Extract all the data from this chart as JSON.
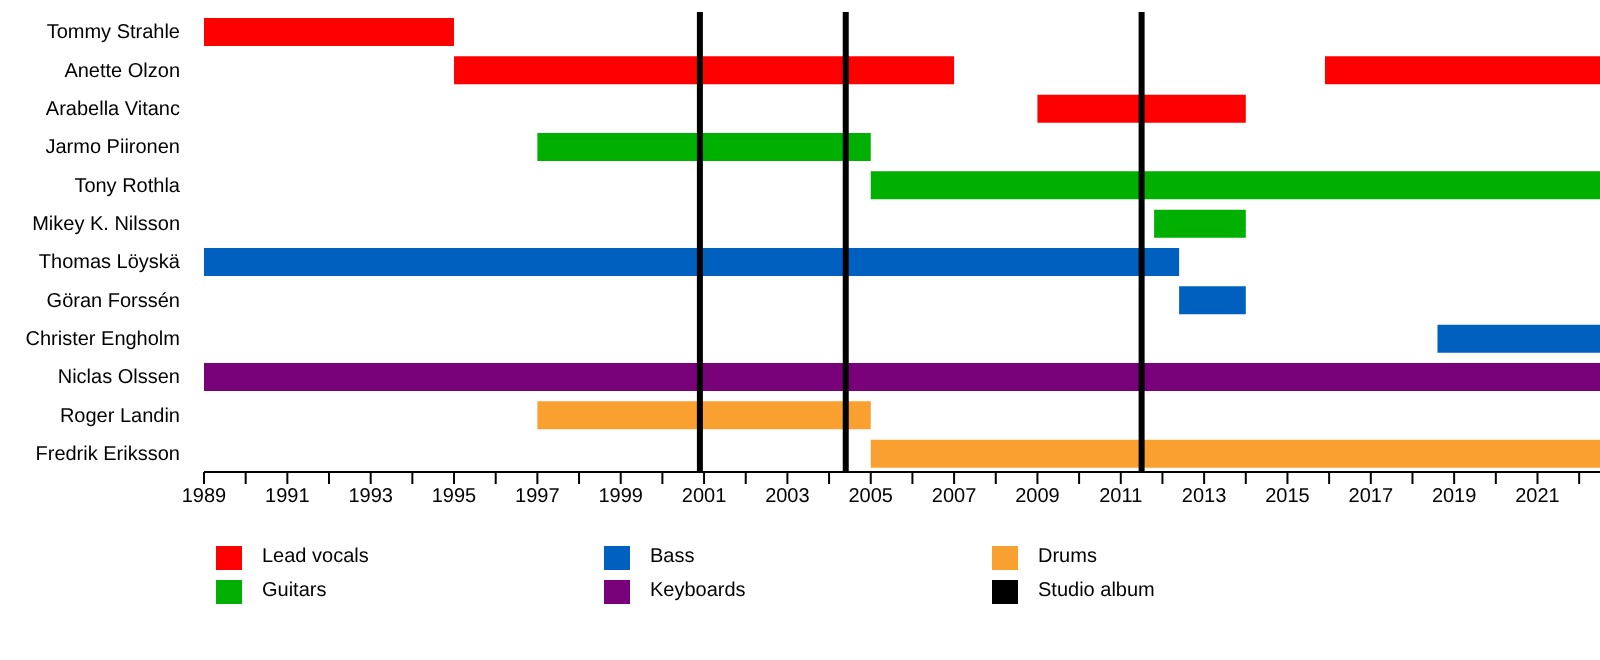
{
  "chart_data": {
    "type": "bar",
    "orientation": "horizontal",
    "categories": [
      "Tommy Strahle",
      "Anette Olzon",
      "Arabella Vitanc",
      "Jarmo Piironen",
      "Tony Rothla",
      "Mikey K. Nilsson",
      "Thomas Löyskä",
      "Göran Forssén",
      "Christer Engholm",
      "Niclas Olssen",
      "Roger Landin",
      "Fredrik Eriksson"
    ],
    "series": [
      {
        "name": "Lead vocals",
        "color": "#ff0000",
        "values": [
          6,
          12,
          5,
          null,
          null,
          null,
          null,
          null,
          null,
          null,
          null,
          null
        ],
        "base": [
          1989,
          1995,
          2009,
          null,
          null,
          null,
          null,
          null,
          null,
          null,
          null,
          null
        ]
      },
      {
        "color": "#ff0000",
        "values": [
          null,
          6.6,
          null,
          null,
          null,
          null,
          null,
          null,
          null,
          null,
          null,
          null
        ],
        "base": [
          null,
          2015.9,
          null,
          null,
          null,
          null,
          null,
          null,
          null,
          null,
          null,
          null
        ]
      },
      {
        "name": "Guitars",
        "color": "#00b000",
        "values": [
          null,
          null,
          null,
          8,
          17.5,
          2.2,
          null,
          null,
          null,
          null,
          null,
          null
        ],
        "base": [
          null,
          null,
          null,
          1997,
          2005,
          2011.8,
          null,
          null,
          null,
          null,
          null,
          null
        ]
      },
      {
        "name": "Bass",
        "color": "#0060c0",
        "values": [
          null,
          null,
          null,
          null,
          null,
          null,
          23.4,
          1.6,
          3.9,
          null,
          null,
          null
        ],
        "base": [
          null,
          null,
          null,
          null,
          null,
          null,
          1989,
          2012.4,
          2018.6,
          null,
          null,
          null
        ]
      },
      {
        "name": "Keyboards",
        "color": "#780078",
        "values": [
          null,
          null,
          null,
          null,
          null,
          null,
          null,
          null,
          null,
          33.5,
          null,
          null
        ],
        "base": [
          null,
          null,
          null,
          null,
          null,
          null,
          null,
          null,
          null,
          1989,
          null,
          null
        ]
      },
      {
        "name": "Drums",
        "color": "#f9a030",
        "values": [
          null,
          null,
          null,
          null,
          null,
          null,
          null,
          null,
          null,
          null,
          8,
          17.5
        ],
        "base": [
          null,
          null,
          null,
          null,
          null,
          null,
          null,
          null,
          null,
          null,
          1997,
          2005
        ]
      }
    ],
    "ref_lines": [
      {
        "axis": "x",
        "value": 2000.9,
        "label": "Studio album",
        "color": "#000000"
      },
      {
        "axis": "x",
        "value": 2004.4,
        "color": "#000000"
      },
      {
        "axis": "x",
        "value": 2011.5,
        "color": "#000000"
      }
    ],
    "xlim": [
      1989,
      2022.5
    ],
    "xticks": [
      1989,
      {
        "value": 1990,
        "label": null
      },
      1991,
      {
        "value": 1992,
        "label": null
      },
      1993,
      {
        "value": 1994,
        "label": null
      },
      1995,
      {
        "value": 1996,
        "label": null
      },
      1997,
      {
        "value": 1998,
        "label": null
      },
      1999,
      {
        "value": 2000,
        "label": null
      },
      2001,
      {
        "value": 2002,
        "label": null
      },
      2003,
      {
        "value": 2004,
        "label": null
      },
      2005,
      {
        "value": 2006,
        "label": null
      },
      2007,
      {
        "value": 2008,
        "label": null
      },
      2009,
      {
        "value": 2010,
        "label": null
      },
      2011,
      {
        "value": 2012,
        "label": null
      },
      2013,
      {
        "value": 2014,
        "label": null
      },
      2015,
      {
        "value": 2016,
        "label": null
      },
      2017,
      {
        "value": 2018,
        "label": null
      },
      2019,
      {
        "value": 2020,
        "label": null
      },
      2021,
      {
        "value": 2022,
        "label": null
      }
    ],
    "legend": "bottom",
    "grid": false
  }
}
